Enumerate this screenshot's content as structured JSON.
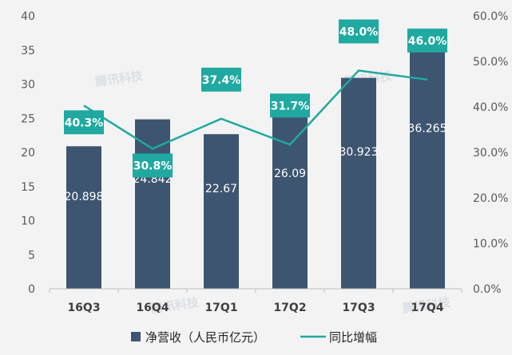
{
  "chart_data": {
    "type": "bar+line",
    "categories": [
      "16Q3",
      "16Q4",
      "17Q1",
      "17Q2",
      "17Q3",
      "17Q4"
    ],
    "series": [
      {
        "name": "净营收（人民币亿元）",
        "type": "bar",
        "axis": "left",
        "values": [
          20.898,
          24.842,
          22.67,
          26.09,
          30.923,
          36.265
        ],
        "labels": [
          "20.898",
          "24.842",
          "22.67",
          "26.09",
          "30.923",
          "36.265"
        ],
        "color": "#3d5570"
      },
      {
        "name": "同比增幅",
        "type": "line",
        "axis": "right",
        "values": [
          40.3,
          30.8,
          37.4,
          31.7,
          48.0,
          46.0
        ],
        "labels": [
          "40.3%",
          "30.8%",
          "37.4%",
          "31.7%",
          "48.0%",
          "46.0%"
        ],
        "color": "#1fa9a0"
      }
    ],
    "y_left": {
      "ylim": [
        0,
        40
      ],
      "ticks": [
        0,
        5,
        10,
        15,
        20,
        25,
        30,
        35,
        40
      ],
      "tick_labels": [
        "0",
        "5",
        "10",
        "15",
        "20",
        "25",
        "30",
        "35",
        "40"
      ]
    },
    "y_right": {
      "ylim": [
        0,
        60
      ],
      "ticks": [
        0,
        10,
        20,
        30,
        40,
        50,
        60
      ],
      "tick_labels": [
        "0.0%",
        "10.0%",
        "20.0%",
        "30.0%",
        "40.0%",
        "50.0%",
        "60.0%"
      ]
    },
    "legend": {
      "position": "bottom"
    },
    "grid": false
  },
  "watermark": "腾讯科技"
}
